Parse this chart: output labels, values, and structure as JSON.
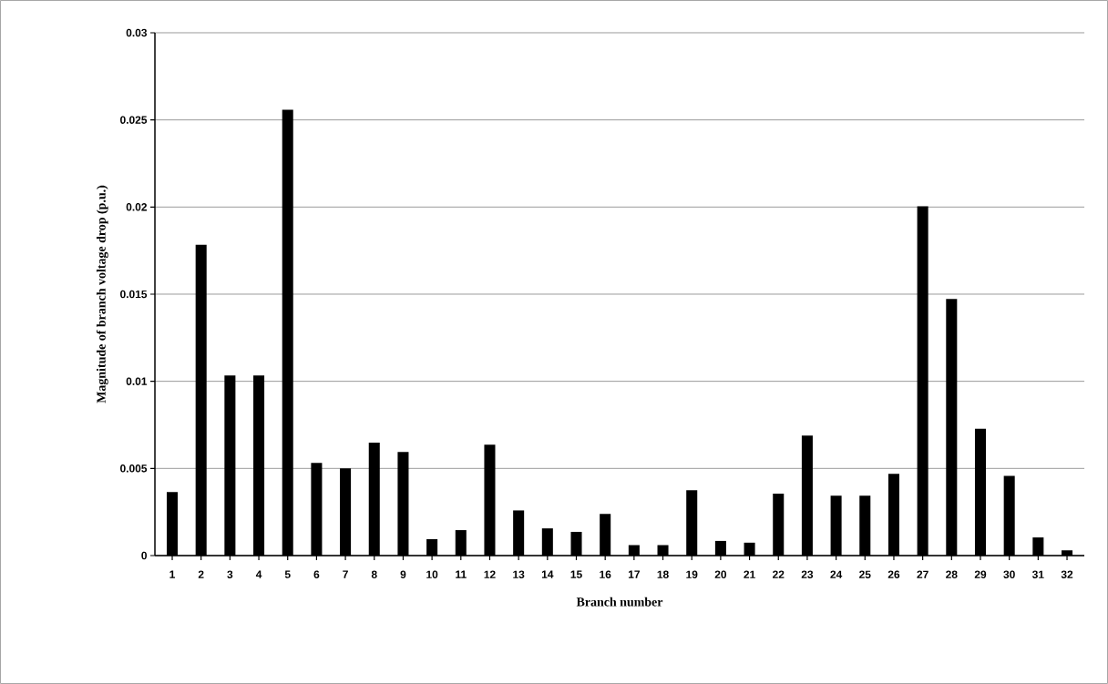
{
  "chart_data": {
    "type": "bar",
    "xlabel": "Branch number",
    "ylabel": "Magnitude of branch voltage drop (p.u.)",
    "categories": [
      "1",
      "2",
      "3",
      "4",
      "5",
      "6",
      "7",
      "8",
      "9",
      "10",
      "11",
      "12",
      "13",
      "14",
      "15",
      "16",
      "17",
      "18",
      "19",
      "20",
      "21",
      "22",
      "23",
      "24",
      "25",
      "26",
      "27",
      "28",
      "29",
      "30",
      "31",
      "32"
    ],
    "values": [
      0.00365,
      0.01784,
      0.01033,
      0.01033,
      0.02558,
      0.00532,
      0.005,
      0.00648,
      0.00594,
      0.00094,
      0.00146,
      0.00636,
      0.00259,
      0.00156,
      0.00136,
      0.00239,
      0.0006,
      0.0006,
      0.00375,
      0.00084,
      0.00074,
      0.00355,
      0.00688,
      0.00343,
      0.00343,
      0.00469,
      0.02004,
      0.01473,
      0.00728,
      0.00457,
      0.00104,
      0.0003
    ],
    "color": "#000000",
    "ylim": [
      0,
      0.03
    ],
    "yticks": [
      0,
      0.005,
      0.01,
      0.015,
      0.02,
      0.025,
      0.03
    ],
    "grid": "y"
  }
}
